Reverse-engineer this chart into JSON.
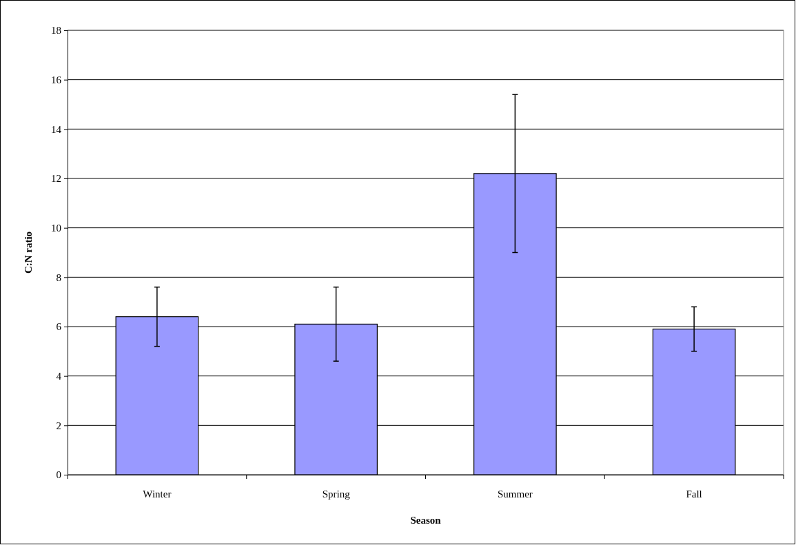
{
  "chart_data": {
    "type": "bar",
    "xlabel": "Season",
    "ylabel": "C:N ratio",
    "categories": [
      "Winter",
      "Spring",
      "Summer",
      "Fall"
    ],
    "values": [
      6.4,
      6.1,
      12.2,
      5.9
    ],
    "errors": [
      1.2,
      1.5,
      3.2,
      0.9
    ],
    "color": "#9999ff",
    "ylim": [
      0,
      18
    ],
    "yticks": [
      0,
      2,
      4,
      6,
      8,
      10,
      12,
      14,
      16,
      18
    ],
    "grid": "y"
  }
}
